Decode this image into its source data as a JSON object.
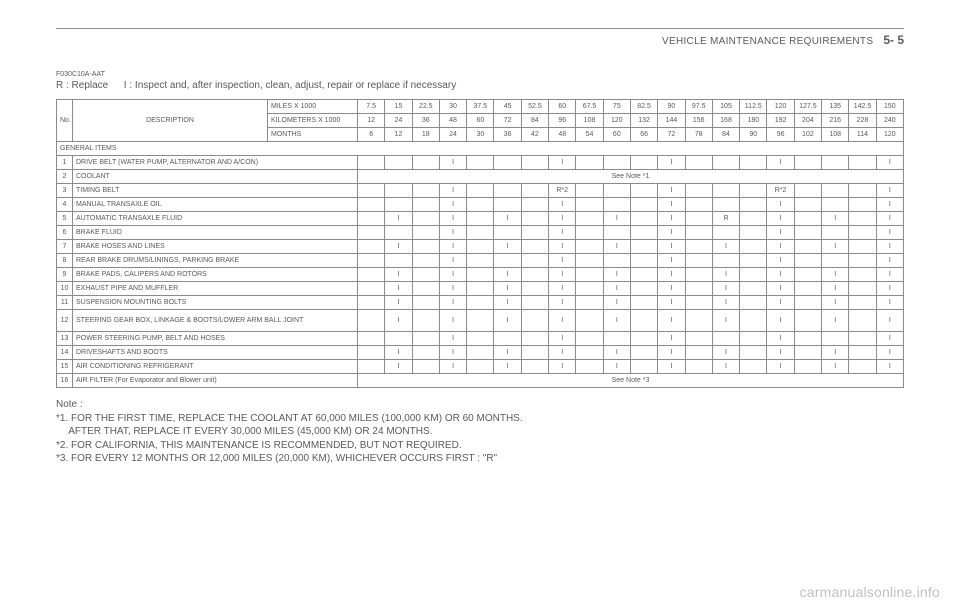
{
  "header": {
    "title": "VEHICLE MAINTENANCE REQUIREMENTS",
    "page": "5- 5"
  },
  "code": "F030C10A-AAT",
  "legend": "R : Replace   I : Inspect and, after inspection, clean, adjust, repair or replace if necessary",
  "col_labels": {
    "no": "No.",
    "desc": "DESCRIPTION",
    "miles": "MILES X 1000",
    "km": "KILOMETERS X 1000",
    "months": "MONTHS"
  },
  "miles": [
    "7.5",
    "15",
    "22.5",
    "30",
    "37.5",
    "45",
    "52.5",
    "60",
    "67.5",
    "75",
    "82.5",
    "90",
    "97.5",
    "105",
    "112.5",
    "120",
    "127.5",
    "135",
    "142.5",
    "150"
  ],
  "km": [
    "12",
    "24",
    "36",
    "48",
    "60",
    "72",
    "84",
    "96",
    "108",
    "120",
    "132",
    "144",
    "156",
    "168",
    "180",
    "192",
    "204",
    "216",
    "228",
    "240"
  ],
  "months": [
    "6",
    "12",
    "18",
    "24",
    "30",
    "36",
    "42",
    "48",
    "54",
    "60",
    "66",
    "72",
    "78",
    "84",
    "90",
    "96",
    "102",
    "108",
    "114",
    "120"
  ],
  "section": "GENERAL ITEMS",
  "note_coolant": "See Note *1",
  "note_airfilter": "See Note *3",
  "rows": [
    {
      "n": "1",
      "d": "DRIVE BELT (WATER PUMP, ALTERNATOR AND A/CON)",
      "v": [
        "",
        "",
        "",
        "I",
        "",
        "",
        "",
        "I",
        "",
        "",
        "",
        "I",
        "",
        "",
        "",
        "I",
        "",
        "",
        "",
        "I"
      ]
    },
    {
      "n": "2",
      "d": "COOLANT",
      "span": true,
      "spankey": "note_coolant"
    },
    {
      "n": "3",
      "d": "TIMING BELT",
      "v": [
        "",
        "",
        "",
        "I",
        "",
        "",
        "",
        "R*2",
        "",
        "",
        "",
        "I",
        "",
        "",
        "",
        "R*2",
        "",
        "",
        "",
        "I"
      ]
    },
    {
      "n": "4",
      "d": "MANUAL TRANSAXLE OIL",
      "v": [
        "",
        "",
        "",
        "I",
        "",
        "",
        "",
        "I",
        "",
        "",
        "",
        "I",
        "",
        "",
        "",
        "I",
        "",
        "",
        "",
        "I"
      ]
    },
    {
      "n": "5",
      "d": "AUTOMATIC TRANSAXLE FLUID",
      "v": [
        "",
        "I",
        "",
        "I",
        "",
        "I",
        "",
        "I",
        "",
        "I",
        "",
        "I",
        "",
        "R",
        "",
        "I",
        "",
        "I",
        "",
        "I"
      ]
    },
    {
      "n": "6",
      "d": "BRAKE FLUID",
      "v": [
        "",
        "",
        "",
        "I",
        "",
        "",
        "",
        "I",
        "",
        "",
        "",
        "I",
        "",
        "",
        "",
        "I",
        "",
        "",
        "",
        "I"
      ]
    },
    {
      "n": "7",
      "d": "BRAKE HOSES AND LINES",
      "v": [
        "",
        "I",
        "",
        "I",
        "",
        "I",
        "",
        "I",
        "",
        "I",
        "",
        "I",
        "",
        "I",
        "",
        "I",
        "",
        "I",
        "",
        "I"
      ]
    },
    {
      "n": "8",
      "d": "REAR BRAKE DRUMS/LININGS, PARKING BRAKE",
      "v": [
        "",
        "",
        "",
        "I",
        "",
        "",
        "",
        "I",
        "",
        "",
        "",
        "I",
        "",
        "",
        "",
        "I",
        "",
        "",
        "",
        "I"
      ]
    },
    {
      "n": "9",
      "d": "BRAKE PADS, CALIPERS AND ROTORS",
      "v": [
        "",
        "I",
        "",
        "I",
        "",
        "I",
        "",
        "I",
        "",
        "I",
        "",
        "I",
        "",
        "I",
        "",
        "I",
        "",
        "I",
        "",
        "I"
      ]
    },
    {
      "n": "10",
      "d": "EXHAUST PIPE AND MUFFLER",
      "v": [
        "",
        "I",
        "",
        "I",
        "",
        "I",
        "",
        "I",
        "",
        "I",
        "",
        "I",
        "",
        "I",
        "",
        "I",
        "",
        "I",
        "",
        "I"
      ]
    },
    {
      "n": "11",
      "d": "SUSPENSION MOUNTING BOLTS",
      "v": [
        "",
        "I",
        "",
        "I",
        "",
        "I",
        "",
        "I",
        "",
        "I",
        "",
        "I",
        "",
        "I",
        "",
        "I",
        "",
        "I",
        "",
        "I"
      ]
    },
    {
      "n": "12",
      "d": "STEERING GEAR BOX, LINKAGE & BOOTS/LOWER ARM BALL JOINT",
      "v": [
        "",
        "I",
        "",
        "I",
        "",
        "I",
        "",
        "I",
        "",
        "I",
        "",
        "I",
        "",
        "I",
        "",
        "I",
        "",
        "I",
        "",
        "I"
      ],
      "tall": true
    },
    {
      "n": "13",
      "d": "POWER STEERING PUMP, BELT AND HOSES",
      "v": [
        "",
        "",
        "",
        "I",
        "",
        "",
        "",
        "I",
        "",
        "",
        "",
        "I",
        "",
        "",
        "",
        "I",
        "",
        "",
        "",
        "I"
      ]
    },
    {
      "n": "14",
      "d": "DRIVESHAFTS AND BOOTS",
      "v": [
        "",
        "I",
        "",
        "I",
        "",
        "I",
        "",
        "I",
        "",
        "I",
        "",
        "I",
        "",
        "I",
        "",
        "I",
        "",
        "I",
        "",
        "I"
      ]
    },
    {
      "n": "15",
      "d": "AIR CONDITIONING REFRIGERANT",
      "v": [
        "",
        "I",
        "",
        "I",
        "",
        "I",
        "",
        "I",
        "",
        "I",
        "",
        "I",
        "",
        "I",
        "",
        "I",
        "",
        "I",
        "",
        "I"
      ]
    },
    {
      "n": "16",
      "d": "AIR FILTER (For Evaporator and Blower unit)",
      "span": true,
      "spankey": "note_airfilter"
    }
  ],
  "notes": {
    "heading": "Note :",
    "l1": "*1. FOR THE FIRST TIME, REPLACE THE COOLANT AT 60,000 MILES (100,000 KM) OR 60 MONTHS.",
    "l1b": "  AFTER THAT, REPLACE IT EVERY 30,000 MILES (45,000 KM) OR 24 MONTHS.",
    "l2": "*2. FOR CALIFORNIA, THIS MAINTENANCE IS RECOMMENDED, BUT NOT REQUIRED.",
    "l3": "*3. FOR EVERY 12 MONTHS OR 12,000 MILES (20,000 KM), WHICHEVER OCCURS FIRST : \"R\""
  },
  "watermark": "carmanualsonline.info"
}
